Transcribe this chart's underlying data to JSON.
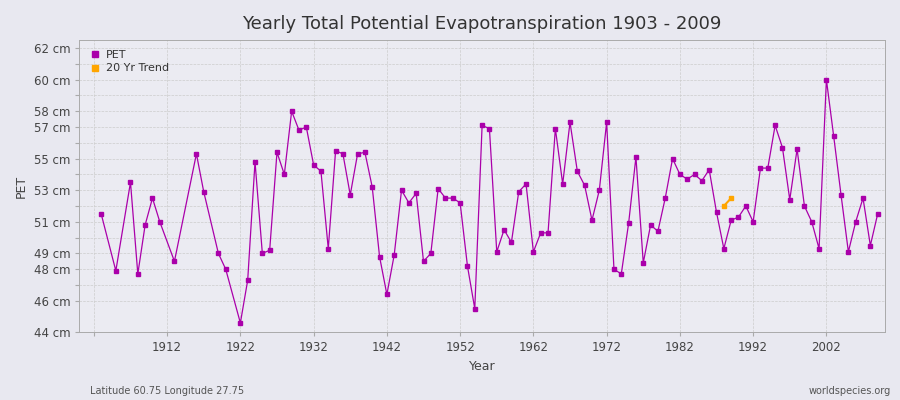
{
  "title": "Yearly Total Potential Evapotranspiration 1903 - 2009",
  "xlabel": "Year",
  "ylabel": "PET",
  "bottom_left_label": "Latitude 60.75 Longitude 27.75",
  "bottom_right_label": "worldspecies.org",
  "bg_color": "#e8e8f0",
  "plot_bg_color": "#ebebf2",
  "line_color": "#aa00aa",
  "trend_color": "#ffa500",
  "years": [
    1903,
    1905,
    1907,
    1908,
    1909,
    1910,
    1911,
    1913,
    1916,
    1917,
    1919,
    1920,
    1922,
    1923,
    1924,
    1925,
    1926,
    1927,
    1928,
    1929,
    1930,
    1931,
    1932,
    1933,
    1934,
    1935,
    1936,
    1937,
    1938,
    1939,
    1940,
    1941,
    1942,
    1943,
    1944,
    1945,
    1946,
    1947,
    1948,
    1949,
    1950,
    1951,
    1952,
    1953,
    1954,
    1955,
    1956,
    1957,
    1958,
    1959,
    1960,
    1961,
    1962,
    1963,
    1964,
    1965,
    1966,
    1967,
    1968,
    1969,
    1970,
    1971,
    1972,
    1973,
    1974,
    1975,
    1976,
    1977,
    1978,
    1979,
    1980,
    1981,
    1982,
    1983,
    1984,
    1985,
    1986,
    1987,
    1988,
    1989,
    1990,
    1991,
    1992,
    1993,
    1994,
    1995,
    1996,
    1997,
    1998,
    1999,
    2000,
    2001,
    2002,
    2003,
    2004,
    2005,
    2006,
    2007,
    2008,
    2009
  ],
  "pet": [
    51.5,
    47.9,
    53.5,
    47.7,
    50.8,
    52.5,
    51.0,
    48.5,
    55.3,
    52.9,
    49.0,
    48.0,
    44.6,
    47.3,
    54.8,
    49.0,
    49.2,
    55.4,
    54.0,
    58.0,
    56.8,
    57.0,
    54.6,
    54.2,
    49.3,
    55.5,
    55.3,
    52.7,
    55.3,
    55.4,
    53.2,
    48.8,
    46.4,
    48.9,
    53.0,
    52.2,
    52.8,
    48.5,
    49.0,
    53.1,
    52.5,
    52.5,
    52.2,
    48.2,
    45.5,
    57.1,
    56.9,
    49.1,
    50.5,
    49.7,
    52.9,
    53.4,
    49.1,
    50.3,
    50.3,
    56.9,
    53.4,
    57.3,
    54.2,
    53.3,
    51.1,
    53.0,
    57.3,
    48.0,
    47.7,
    50.9,
    55.1,
    48.4,
    50.8,
    50.4,
    52.5,
    55.0,
    54.0,
    53.7,
    54.0,
    53.6,
    54.3,
    51.6,
    49.3,
    51.1,
    51.3,
    52.0,
    51.0,
    54.4,
    54.4,
    57.1,
    55.7,
    52.4,
    55.6,
    52.0,
    51.0,
    49.3,
    60.0,
    56.4,
    52.7,
    49.1,
    51.0,
    52.5,
    49.5,
    51.5
  ],
  "trend_years": [
    1988,
    1989
  ],
  "trend_vals": [
    52.0,
    52.5
  ],
  "yticks": [
    44,
    46,
    47,
    48,
    49,
    50,
    51,
    52,
    53,
    54,
    55,
    56,
    57,
    58,
    59,
    60,
    61,
    62
  ],
  "ytick_labels": [
    "44 cm",
    "46 cm",
    "",
    "48 cm",
    "49 cm",
    "",
    "51 cm",
    "",
    "53 cm",
    "",
    "55 cm",
    "",
    "57 cm",
    "58 cm",
    "",
    "60 cm",
    "",
    "62 cm"
  ],
  "xmin": 1900,
  "xmax": 2010,
  "ymin": 44,
  "ymax": 62.5
}
